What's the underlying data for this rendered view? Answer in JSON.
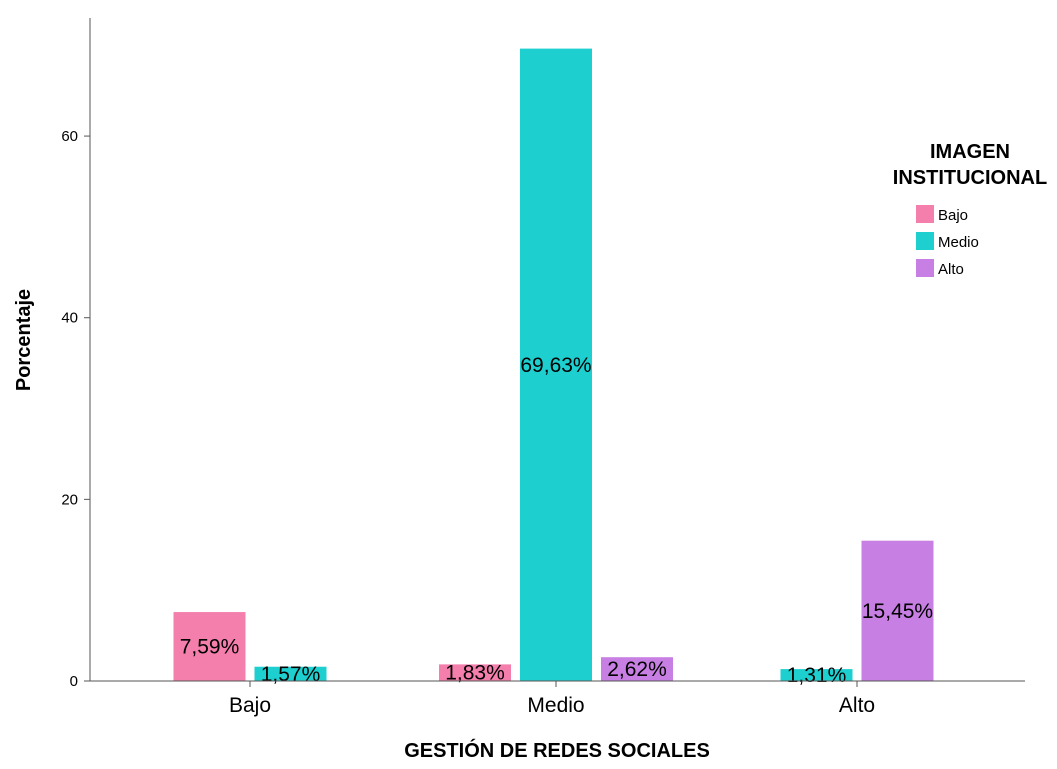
{
  "chart_data": {
    "type": "bar",
    "categories": [
      "Bajo",
      "Medio",
      "Alto"
    ],
    "series": [
      {
        "name": "Bajo",
        "color": "#f47eac",
        "values": [
          7.59,
          1.83,
          null
        ]
      },
      {
        "name": "Medio",
        "color": "#1ecfcf",
        "values": [
          1.57,
          69.63,
          1.31
        ]
      },
      {
        "name": "Alto",
        "color": "#c87fe3",
        "values": [
          null,
          2.62,
          15.45
        ]
      }
    ],
    "data_labels": {
      "Bajo": [
        "7,59%",
        "1,83%",
        ""
      ],
      "Medio": [
        "1,57%",
        "69,63%",
        "1,31%"
      ],
      "Alto": [
        "",
        "2,62%",
        "15,45%"
      ]
    },
    "xlabel": "GESTIÓN DE REDES SOCIALES",
    "ylabel": "Porcentaje",
    "ylim": [
      0,
      73
    ],
    "yticks": [
      0,
      20,
      40,
      60
    ],
    "legend": {
      "title_lines": [
        "IMAGEN",
        "INSTITUCIONAL"
      ],
      "placement": "right"
    },
    "grid": false
  }
}
